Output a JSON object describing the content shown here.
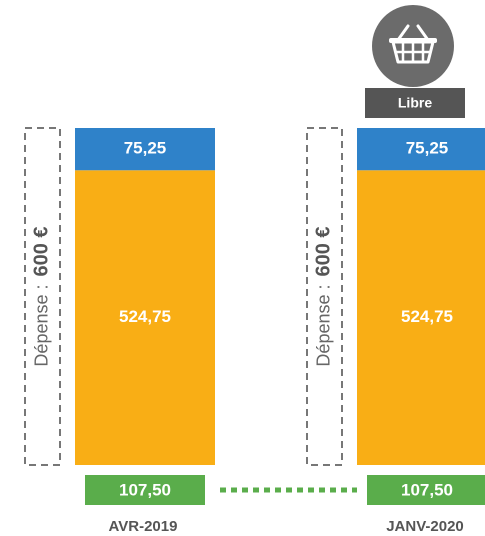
{
  "chart_data": {
    "type": "stacked_bar",
    "categories": [
      "AVR-2019",
      "JANV-2020"
    ],
    "series": [
      {
        "color": "#f9ae15",
        "values": [
          524.75,
          524.75
        ],
        "value_labels": [
          "524,75",
          "524,75"
        ]
      },
      {
        "color": "#2f82c9",
        "values": [
          75.25,
          75.25
        ],
        "value_labels": [
          "75,25",
          "75,25"
        ]
      }
    ],
    "below": {
      "color": "#5aad4b",
      "values": [
        107.5,
        107.5
      ],
      "value_labels": [
        "107,50",
        "107,50"
      ]
    },
    "spend": {
      "label": "Dépense :",
      "values": [
        600,
        600
      ],
      "value_labels": [
        "600 €",
        "600 €"
      ]
    },
    "tag": "Libre",
    "ylim": [
      0,
      600
    ]
  }
}
